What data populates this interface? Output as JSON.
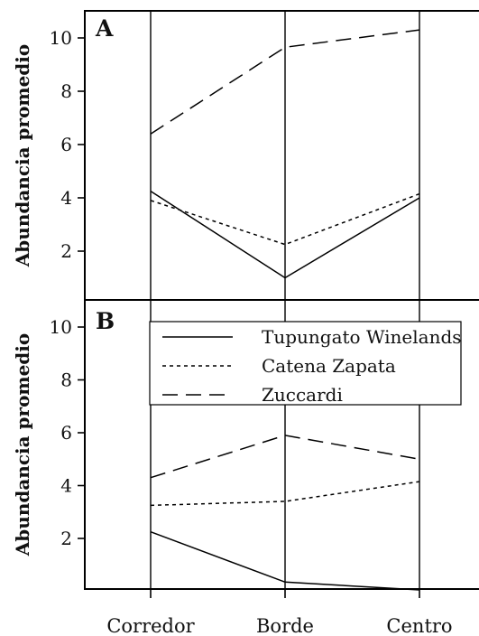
{
  "chart_data": [
    {
      "type": "line",
      "panel_label": "A",
      "ylabel": "Abundancia promedio",
      "categories": [
        "Corredor",
        "Borde",
        "Centro"
      ],
      "yticks": [
        2,
        4,
        6,
        8,
        10
      ],
      "ylim": [
        0,
        11
      ],
      "grid": false,
      "series": [
        {
          "name": "Tupungato Winelands",
          "style": "solid",
          "values": [
            4.25,
            1.0,
            4.0
          ]
        },
        {
          "name": "Catena Zapata",
          "style": "dotted",
          "values": [
            3.9,
            2.25,
            4.15
          ]
        },
        {
          "name": "Zuccardi",
          "style": "dashed",
          "values": [
            6.4,
            9.65,
            10.3
          ]
        }
      ]
    },
    {
      "type": "line",
      "panel_label": "B",
      "ylabel": "Abundancia promedio",
      "categories": [
        "Corredor",
        "Borde",
        "Centro"
      ],
      "yticks": [
        2,
        4,
        6,
        8,
        10
      ],
      "ylim": [
        0,
        11
      ],
      "grid": false,
      "legend": {
        "position": "top",
        "entries": [
          "Tupungato Winelands",
          "Catena Zapata",
          "Zuccardi"
        ]
      },
      "series": [
        {
          "name": "Tupungato Winelands",
          "style": "solid",
          "values": [
            2.25,
            0.35,
            0.05
          ]
        },
        {
          "name": "Catena Zapata",
          "style": "dotted",
          "values": [
            3.25,
            3.4,
            4.15
          ]
        },
        {
          "name": "Zuccardi",
          "style": "dashed",
          "values": [
            4.3,
            5.9,
            5.0
          ]
        }
      ]
    }
  ]
}
